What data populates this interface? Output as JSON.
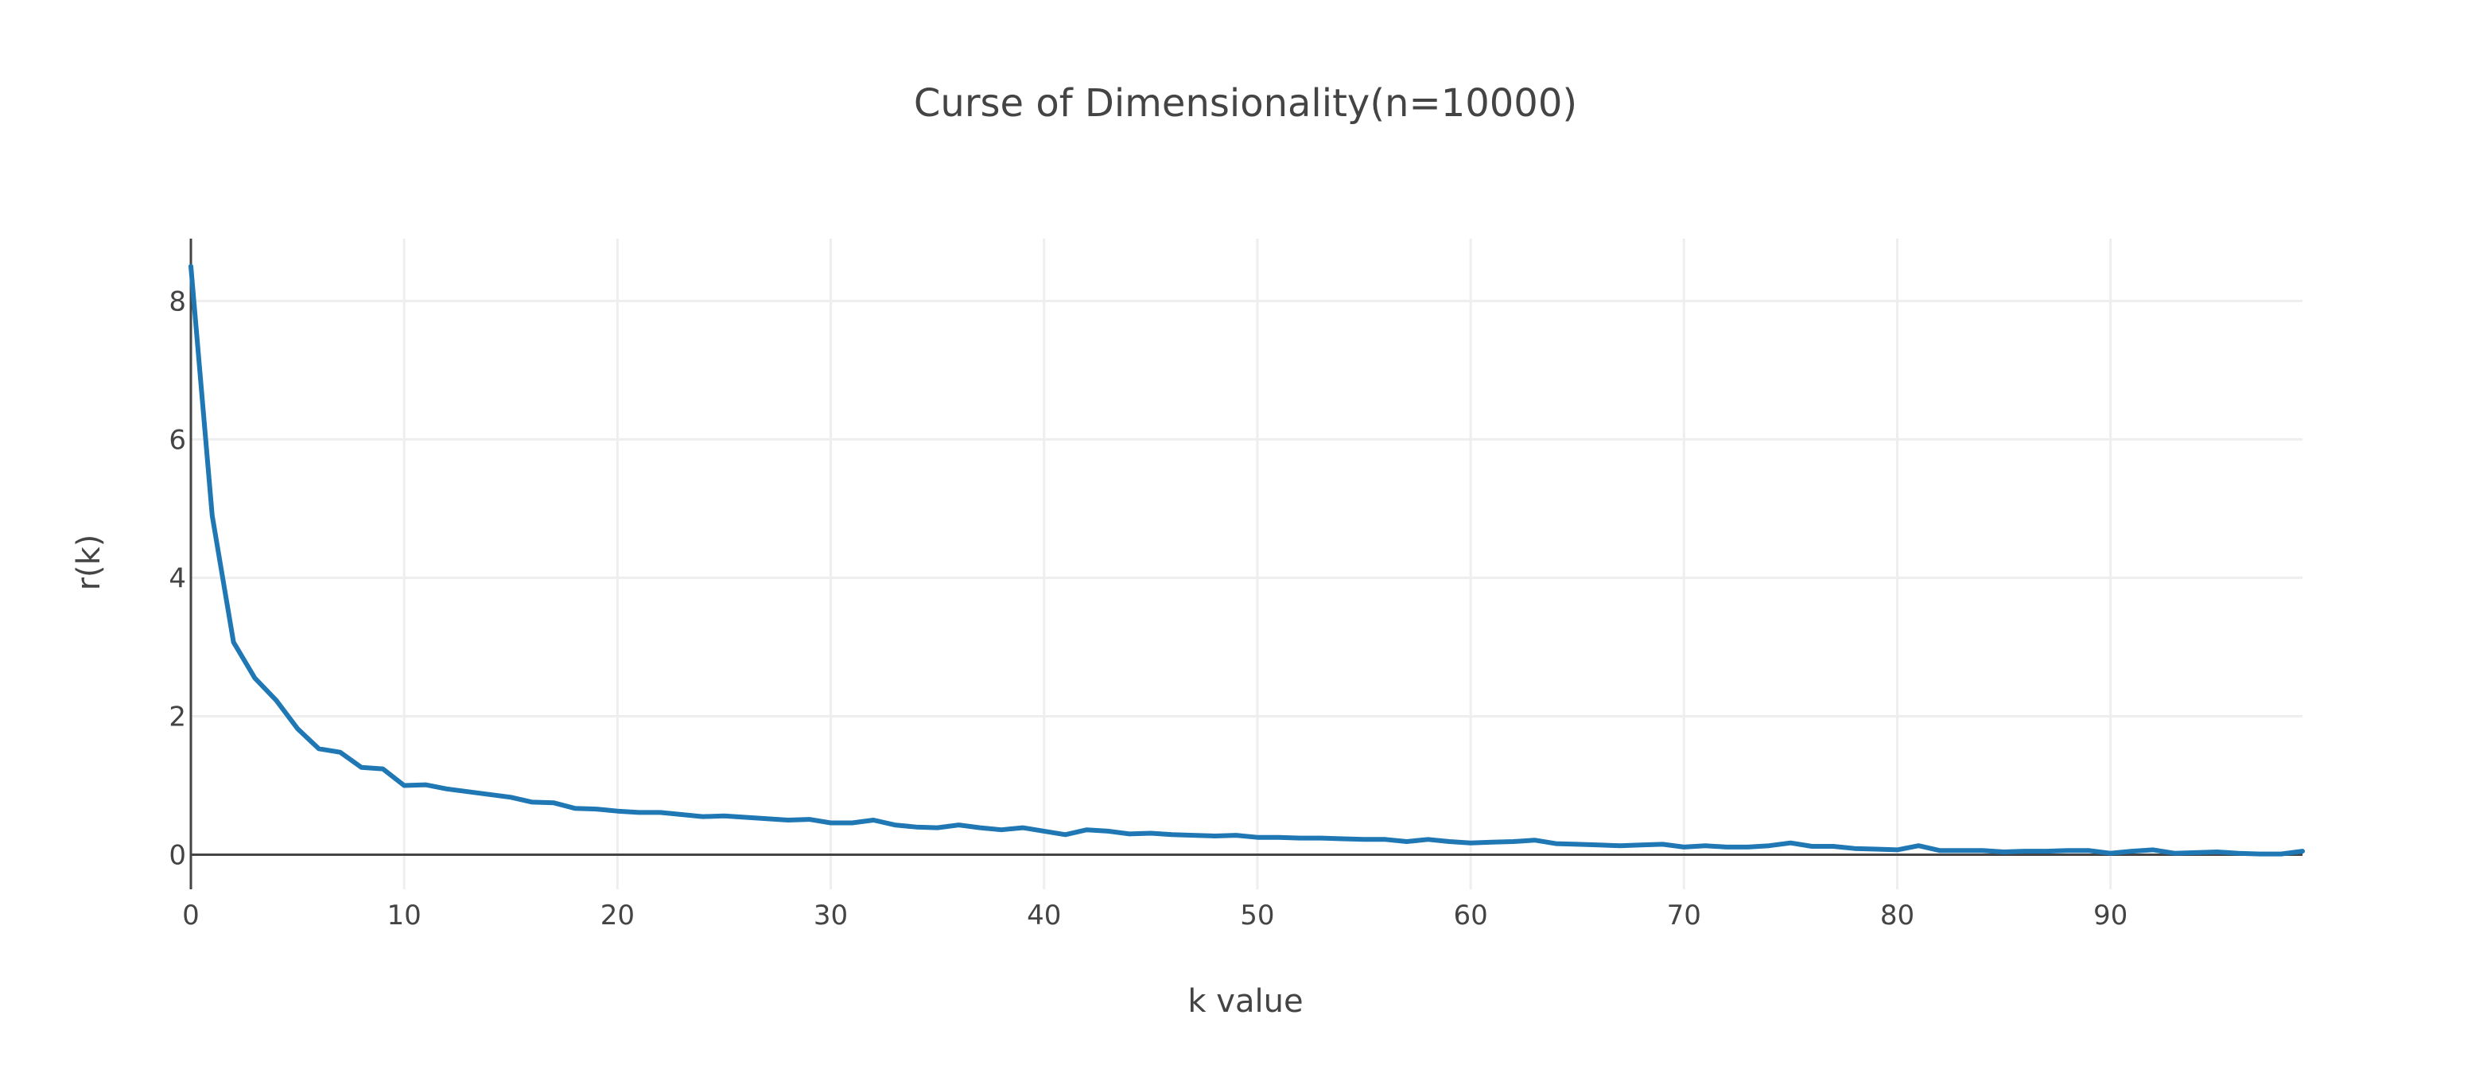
{
  "chart_data": {
    "type": "line",
    "title": "Curse of Dimensionality(n=10000)",
    "xlabel": "k value",
    "ylabel": "r(k)",
    "xlim": [
      0,
      99
    ],
    "ylim": [
      -0.5,
      8.9
    ],
    "grid": true,
    "legend": "none",
    "x_ticks": [
      0,
      10,
      20,
      30,
      40,
      50,
      60,
      70,
      80,
      90
    ],
    "y_ticks": [
      0,
      2,
      4,
      6,
      8
    ],
    "series_color": "#1f77b4",
    "series": [
      {
        "x": [
          0,
          1,
          2,
          3,
          4,
          5,
          6,
          7,
          8,
          9,
          10,
          11,
          12,
          13,
          14,
          15,
          16,
          17,
          18,
          19,
          20,
          21,
          22,
          23,
          24,
          25,
          26,
          27,
          28,
          29,
          30,
          31,
          32,
          33,
          34,
          35,
          36,
          37,
          38,
          39,
          40,
          41,
          42,
          43,
          44,
          45,
          46,
          47,
          48,
          49,
          50,
          51,
          52,
          53,
          54,
          55,
          56,
          57,
          58,
          59,
          60,
          61,
          62,
          63,
          64,
          65,
          66,
          67,
          68,
          69,
          70,
          71,
          72,
          73,
          74,
          75,
          76,
          77,
          78,
          79,
          80,
          81,
          82,
          83,
          84,
          85,
          86,
          87,
          88,
          89,
          90,
          91,
          92,
          93,
          94,
          95,
          96,
          97,
          98,
          99
        ],
        "values": [
          8.5,
          4.9,
          3.07,
          2.55,
          2.23,
          1.82,
          1.53,
          1.48,
          1.26,
          1.24,
          1.0,
          1.01,
          0.95,
          0.91,
          0.87,
          0.83,
          0.76,
          0.75,
          0.67,
          0.66,
          0.63,
          0.61,
          0.61,
          0.58,
          0.55,
          0.56,
          0.54,
          0.52,
          0.5,
          0.51,
          0.46,
          0.46,
          0.5,
          0.43,
          0.4,
          0.39,
          0.43,
          0.39,
          0.36,
          0.39,
          0.34,
          0.29,
          0.36,
          0.34,
          0.3,
          0.31,
          0.29,
          0.28,
          0.27,
          0.28,
          0.25,
          0.25,
          0.24,
          0.24,
          0.23,
          0.22,
          0.22,
          0.19,
          0.22,
          0.19,
          0.17,
          0.18,
          0.19,
          0.21,
          0.16,
          0.15,
          0.14,
          0.13,
          0.14,
          0.15,
          0.11,
          0.13,
          0.11,
          0.11,
          0.13,
          0.17,
          0.12,
          0.12,
          0.09,
          0.08,
          0.07,
          0.13,
          0.06,
          0.06,
          0.06,
          0.04,
          0.05,
          0.05,
          0.06,
          0.06,
          0.02,
          0.05,
          0.07,
          0.02,
          0.03,
          0.04,
          0.02,
          0.01,
          0.01,
          0.05
        ]
      }
    ]
  }
}
